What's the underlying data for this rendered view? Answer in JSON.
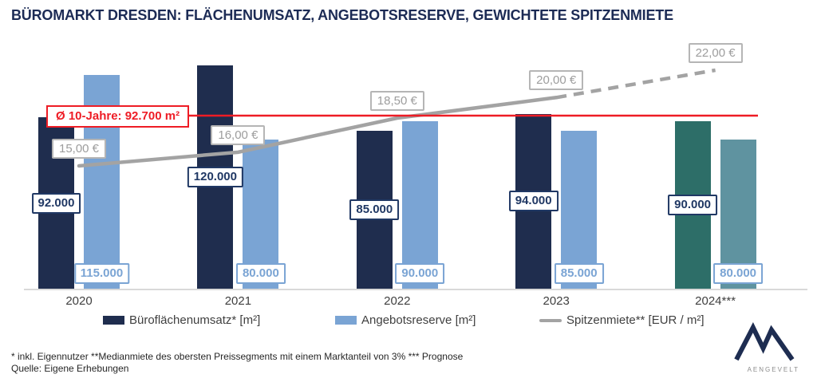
{
  "title": "BÜROMARKT DRESDEN: FLÄCHENUMSATZ, ANGEBOTSRESERVE, GEWICHTETE SPITZENMIETE",
  "chart_data": {
    "type": "bar",
    "subtype": "grouped bars with line overlay",
    "categories": [
      "2020",
      "2021",
      "2022",
      "2023",
      "2024***"
    ],
    "forecast_category_index": 4,
    "value_axis_visible": false,
    "value_axis_range": [
      0,
      130000
    ],
    "series": [
      {
        "name": "Büroflächenumsatz* [m²]",
        "type": "bar",
        "values": [
          92000,
          120000,
          85000,
          94000,
          90000
        ],
        "labels": [
          "92.000",
          "120.000",
          "85.000",
          "94.000",
          "90.000"
        ],
        "color": "#1f2d4e",
        "forecast_color": "#2d6e68",
        "label_color": "#203864"
      },
      {
        "name": "Angebotsreserve [m²]",
        "type": "bar",
        "values": [
          115000,
          80000,
          90000,
          85000,
          80000
        ],
        "labels": [
          "115.000",
          "80.000",
          "90.000",
          "85.000",
          "80.000"
        ],
        "color": "#7aa4d4",
        "forecast_color": "#5f93a0",
        "label_color": "#7aa4d4"
      },
      {
        "name": "Spitzenmiete** [EUR / m²]",
        "type": "line",
        "values": [
          15,
          16,
          18.5,
          20,
          22
        ],
        "labels": [
          "15,00 €",
          "16,00 €",
          "18,50 €",
          "20,00 €",
          "22,00 €"
        ],
        "color": "#a3a3a3",
        "dashed_from_index": 3
      }
    ],
    "average_line": {
      "label": "Ø 10-Jahre: 92.700 m²",
      "value": 92700,
      "color": "#ee1c25"
    },
    "legend_position": "bottom",
    "grid": false
  },
  "footer": {
    "line1": "* inkl. Eigennutzer **Medianmiete des obersten Preissegments mit einem Marktanteil von 3% *** Prognose",
    "line2": "Quelle: Eigene Erhebungen"
  },
  "logo": {
    "text": "AENGEVELT"
  }
}
